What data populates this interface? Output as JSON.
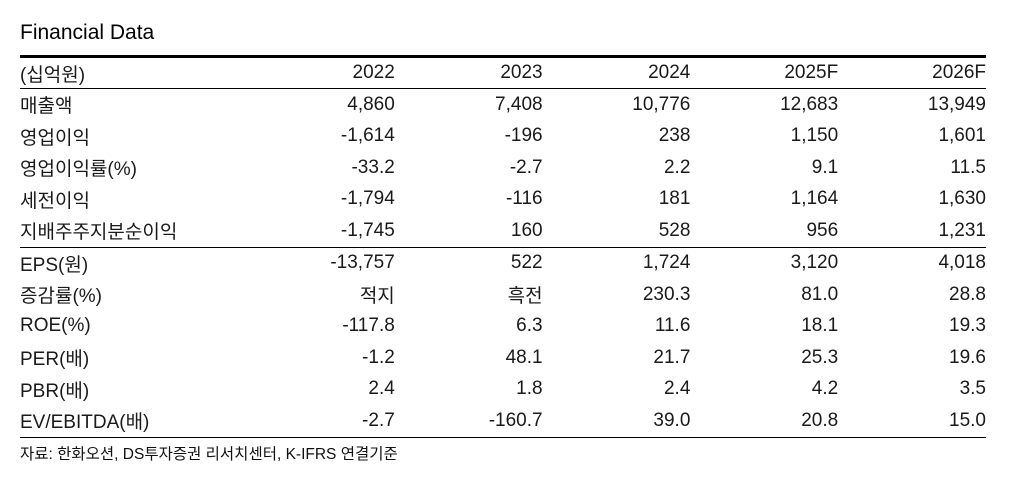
{
  "colors": {
    "background": "#ffffff",
    "text": "#1a1a1a",
    "rule": "#000000"
  },
  "chart_data": {
    "type": "table",
    "title": "Financial Data",
    "unit_label": "(십억원)",
    "columns": [
      "2022",
      "2023",
      "2024",
      "2025F",
      "2026F"
    ],
    "sections": [
      {
        "rows": [
          {
            "label": "매출액",
            "values": [
              "4,860",
              "7,408",
              "10,776",
              "12,683",
              "13,949"
            ]
          },
          {
            "label": "영업이익",
            "values": [
              "-1,614",
              "-196",
              "238",
              "1,150",
              "1,601"
            ]
          },
          {
            "label": "영업이익률(%)",
            "values": [
              "-33.2",
              "-2.7",
              "2.2",
              "9.1",
              "11.5"
            ]
          },
          {
            "label": "세전이익",
            "values": [
              "-1,794",
              "-116",
              "181",
              "1,164",
              "1,630"
            ]
          },
          {
            "label": "지배주주지분순이익",
            "values": [
              "-1,745",
              "160",
              "528",
              "956",
              "1,231"
            ]
          }
        ]
      },
      {
        "rows": [
          {
            "label": "EPS(원)",
            "values": [
              "-13,757",
              "522",
              "1,724",
              "3,120",
              "4,018"
            ]
          },
          {
            "label": "증감률(%)",
            "values": [
              "적지",
              "흑전",
              "230.3",
              "81.0",
              "28.8"
            ]
          },
          {
            "label": "ROE(%)",
            "values": [
              "-117.8",
              "6.3",
              "11.6",
              "18.1",
              "19.3"
            ]
          },
          {
            "label": "PER(배)",
            "values": [
              "-1.2",
              "48.1",
              "21.7",
              "25.3",
              "19.6"
            ]
          },
          {
            "label": "PBR(배)",
            "values": [
              "2.4",
              "1.8",
              "2.4",
              "4.2",
              "3.5"
            ]
          },
          {
            "label": "EV/EBITDA(배)",
            "values": [
              "-2.7",
              "-160.7",
              "39.0",
              "20.8",
              "15.0"
            ]
          }
        ]
      }
    ],
    "source_note": "자료: 한화오션, DS투자증권 리서치센터, K-IFRS 연결기준"
  }
}
